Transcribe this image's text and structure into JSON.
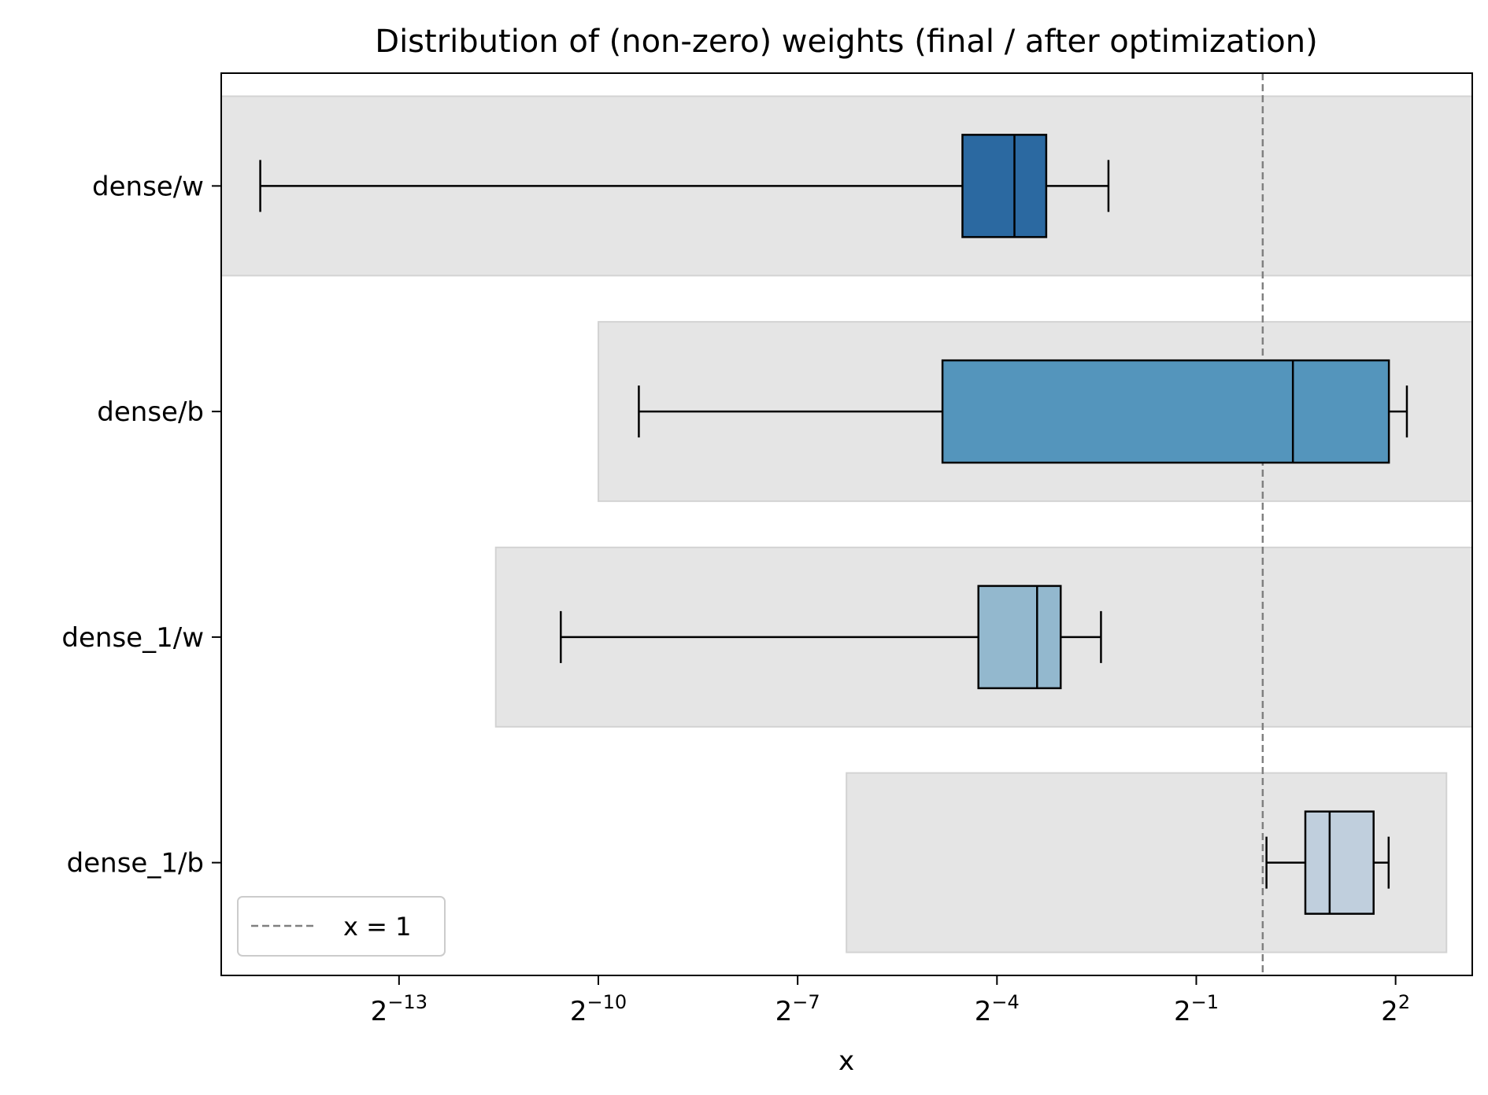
{
  "chart_data": {
    "type": "boxplot",
    "orientation": "horizontal",
    "title": "Distribution of (non-zero) weights (final / after optimization)",
    "xlabel": "x",
    "ylabel": "",
    "x_scale": "log2",
    "x_ticks": [
      {
        "value": 0.0001220703125,
        "base": "2",
        "exp": "−13"
      },
      {
        "value": 0.0009765625,
        "base": "2",
        "exp": "−10"
      },
      {
        "value": 0.0078125,
        "base": "2",
        "exp": "−7"
      },
      {
        "value": 0.0625,
        "base": "2",
        "exp": "−4"
      },
      {
        "value": 0.5,
        "base": "2",
        "exp": "−1"
      },
      {
        "value": 4,
        "base": "2",
        "exp": "2"
      }
    ],
    "xlim": [
      1.91e-05,
      8.9
    ],
    "reference_line": {
      "x": 1,
      "label": "x = 1",
      "style": "dashed",
      "color": "#808080"
    },
    "legend": {
      "position": "lower left",
      "entries": [
        "x = 1"
      ]
    },
    "categories": [
      "dense/w",
      "dense/b",
      "dense_1/w",
      "dense_1/b"
    ],
    "series": [
      {
        "name": "dense/w",
        "whisker_low": 2.87e-05,
        "q1": 0.0436,
        "median": 0.075,
        "q3": 0.1045,
        "whisker_high": 0.2,
        "range": [
          1.91e-05,
          8.9
        ],
        "color": "#2b69a1"
      },
      {
        "name": "dense/b",
        "whisker_low": 0.00149,
        "q1": 0.0354,
        "median": 1.37,
        "q3": 3.73,
        "whisker_high": 4.5,
        "range": [
          0.000977,
          8.9
        ],
        "color": "#5495bc"
      },
      {
        "name": "dense_1/w",
        "whisker_low": 0.00066,
        "q1": 0.0515,
        "median": 0.095,
        "q3": 0.1215,
        "whisker_high": 0.185,
        "range": [
          0.000335,
          8.9
        ],
        "color": "#93b8ce"
      },
      {
        "name": "dense_1/b",
        "whisker_low": 1.04,
        "q1": 1.56,
        "median": 2.01,
        "q3": 3.18,
        "whisker_high": 3.72,
        "range": [
          0.013,
          6.8
        ],
        "color": "#c0cfdd"
      }
    ]
  }
}
